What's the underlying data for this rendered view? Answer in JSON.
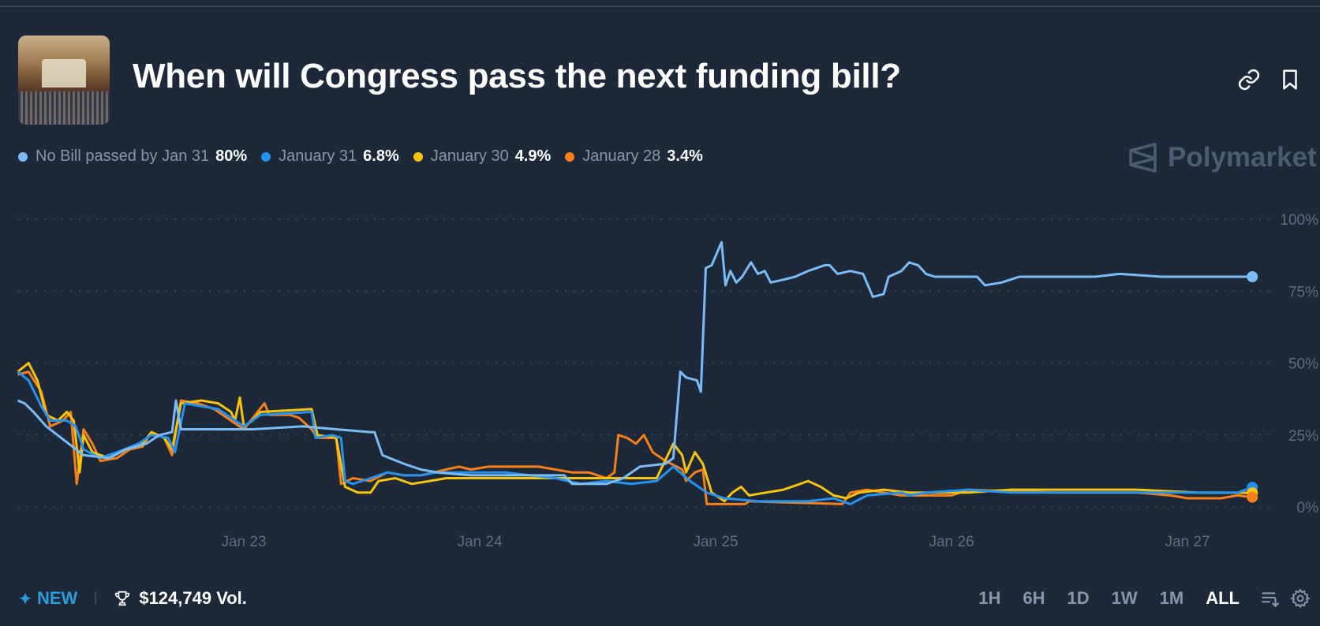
{
  "header": {
    "title": "When will Congress pass the next funding bill?",
    "thumbnail_icon": "capitol-chamber-image",
    "link_icon": "link-icon",
    "bookmark_icon": "bookmark-icon"
  },
  "brand": {
    "name": "Polymarket"
  },
  "legend": [
    {
      "label": "No Bill passed by Jan 31",
      "value": "80%",
      "color": "#7cbcf5"
    },
    {
      "label": "January 31",
      "value": "6.8%",
      "color": "#2492f0"
    },
    {
      "label": "January 30",
      "value": "4.9%",
      "color": "#f7c40d"
    },
    {
      "label": "January 28",
      "value": "3.4%",
      "color": "#f7801a"
    }
  ],
  "footer": {
    "new_label": "NEW",
    "volume": "$124,749 Vol.",
    "ranges": [
      "1H",
      "6H",
      "1D",
      "1W",
      "1M",
      "ALL"
    ],
    "active_range": "ALL"
  },
  "chart_data": {
    "type": "line",
    "ylim": [
      0,
      100
    ],
    "yticks": [
      "100%",
      "75%",
      "50%",
      "25%",
      "0%"
    ],
    "ytick_values": [
      100,
      75,
      50,
      25,
      0
    ],
    "xticks": [
      "Jan 23",
      "Jan 24",
      "Jan 25",
      "Jan 26",
      "Jan 27"
    ],
    "grid": true,
    "series": [
      {
        "name": "No Bill passed by Jan 31",
        "color": "#7cbcf5",
        "points": [
          [
            "Jan 22 01:00",
            37
          ],
          [
            "Jan 22 01:42",
            36
          ],
          [
            "Jan 22 02:36",
            33
          ],
          [
            "Jan 22 03:54",
            28
          ],
          [
            "Jan 22 07:42",
            18
          ],
          [
            "Jan 22 10:18",
            17
          ],
          [
            "Jan 22 12:00",
            20
          ],
          [
            "Jan 22 14:06",
            22
          ],
          [
            "Jan 22 15:24",
            25
          ],
          [
            "Jan 22 16:42",
            26
          ],
          [
            "Jan 22 17:06",
            37
          ],
          [
            "Jan 22 17:36",
            27
          ],
          [
            "Jan 23 00:54",
            27
          ],
          [
            "Jan 23 06:00",
            28
          ],
          [
            "Jan 23 09:24",
            27
          ],
          [
            "Jan 23 12:54",
            26
          ],
          [
            "Jan 23 13:18",
            26
          ],
          [
            "Jan 23 14:06",
            18
          ],
          [
            "Jan 23 16:18",
            15
          ],
          [
            "Jan 23 18:00",
            13
          ],
          [
            "Jan 23 19:42",
            12
          ],
          [
            "Jan 23 23:06",
            11
          ],
          [
            "Jan 24 08:36",
            11
          ],
          [
            "Jan 24 09:24",
            8
          ],
          [
            "Jan 24 12:54",
            8
          ],
          [
            "Jan 24 14:36",
            10
          ],
          [
            "Jan 24 16:18",
            14
          ],
          [
            "Jan 24 18:54",
            15
          ],
          [
            "Jan 24 19:42",
            17
          ],
          [
            "Jan 24 20:24",
            47
          ],
          [
            "Jan 24 21:00",
            45
          ],
          [
            "Jan 24 22:06",
            44
          ],
          [
            "Jan 24 22:30",
            40
          ],
          [
            "Jan 24 23:00",
            83
          ],
          [
            "Jan 24 23:36",
            84
          ],
          [
            "Jan 25 00:36",
            92
          ],
          [
            "Jan 25 01:00",
            77
          ],
          [
            "Jan 25 01:30",
            82
          ],
          [
            "Jan 25 02:06",
            78
          ],
          [
            "Jan 25 02:42",
            80
          ],
          [
            "Jan 25 03:36",
            85
          ],
          [
            "Jan 25 04:18",
            81
          ],
          [
            "Jan 25 05:00",
            82
          ],
          [
            "Jan 25 05:36",
            78
          ],
          [
            "Jan 25 06:54",
            79
          ],
          [
            "Jan 25 08:06",
            80
          ],
          [
            "Jan 25 09:24",
            82
          ],
          [
            "Jan 25 11:06",
            84
          ],
          [
            "Jan 25 11:36",
            84
          ],
          [
            "Jan 25 12:24",
            81
          ],
          [
            "Jan 25 13:42",
            82
          ],
          [
            "Jan 25 15:00",
            81
          ],
          [
            "Jan 25 16:00",
            73
          ],
          [
            "Jan 25 17:06",
            74
          ],
          [
            "Jan 25 17:36",
            80
          ],
          [
            "Jan 25 18:54",
            82
          ],
          [
            "Jan 25 19:42",
            85
          ],
          [
            "Jan 25 20:36",
            84
          ],
          [
            "Jan 25 21:24",
            81
          ],
          [
            "Jan 25 22:18",
            80
          ],
          [
            "Jan 26 02:36",
            80
          ],
          [
            "Jan 26 03:24",
            77
          ],
          [
            "Jan 26 05:06",
            78
          ],
          [
            "Jan 26 06:54",
            80
          ],
          [
            "Jan 26 14:36",
            80
          ],
          [
            "Jan 26 17:06",
            81
          ],
          [
            "Jan 26 21:24",
            80
          ],
          [
            "Jan 27 06:36",
            80
          ]
        ]
      },
      {
        "name": "January 31",
        "color": "#2492f0",
        "points": [
          [
            "Jan 22 01:00",
            47
          ],
          [
            "Jan 22 02:06",
            44
          ],
          [
            "Jan 22 03:24",
            35
          ],
          [
            "Jan 22 04:18",
            30
          ],
          [
            "Jan 22 06:00",
            30
          ],
          [
            "Jan 22 06:54",
            28
          ],
          [
            "Jan 22 07:42",
            20
          ],
          [
            "Jan 22 09:24",
            17
          ],
          [
            "Jan 22 11:06",
            19
          ],
          [
            "Jan 22 13:18",
            22
          ],
          [
            "Jan 22 14:36",
            25
          ],
          [
            "Jan 22 16:18",
            24
          ],
          [
            "Jan 22 17:00",
            19
          ],
          [
            "Jan 22 18:00",
            36
          ],
          [
            "Jan 22 19:42",
            35
          ],
          [
            "Jan 22 21:24",
            34
          ],
          [
            "Jan 23 00:00",
            28
          ],
          [
            "Jan 23 01:42",
            32
          ],
          [
            "Jan 23 06:54",
            33
          ],
          [
            "Jan 23 07:18",
            24
          ],
          [
            "Jan 23 09:00",
            25
          ],
          [
            "Jan 23 09:54",
            24
          ],
          [
            "Jan 23 10:18",
            9
          ],
          [
            "Jan 23 11:06",
            8
          ],
          [
            "Jan 23 12:54",
            10
          ],
          [
            "Jan 23 14:36",
            12
          ],
          [
            "Jan 23 16:18",
            11
          ],
          [
            "Jan 23 18:00",
            11
          ],
          [
            "Jan 23 19:42",
            12
          ],
          [
            "Jan 24 02:36",
            12
          ],
          [
            "Jan 24 07:42",
            10
          ],
          [
            "Jan 24 10:18",
            8
          ],
          [
            "Jan 24 12:54",
            9
          ],
          [
            "Jan 24 15:24",
            8
          ],
          [
            "Jan 24 18:00",
            9
          ],
          [
            "Jan 24 19:42",
            14
          ],
          [
            "Jan 24 21:24",
            9
          ],
          [
            "Jan 24 23:06",
            5
          ],
          [
            "Jan 25 00:54",
            3
          ],
          [
            "Jan 25 04:18",
            2
          ],
          [
            "Jan 25 09:24",
            2
          ],
          [
            "Jan 25 12:00",
            3
          ],
          [
            "Jan 25 13:42",
            1
          ],
          [
            "Jan 25 15:24",
            4
          ],
          [
            "Jan 25 18:54",
            5
          ],
          [
            "Jan 25 19:42",
            4
          ],
          [
            "Jan 25 21:24",
            5
          ],
          [
            "Jan 26 01:42",
            6
          ],
          [
            "Jan 26 06:00",
            5
          ],
          [
            "Jan 27 05:06",
            5
          ],
          [
            "Jan 27 06:36",
            6.8
          ]
        ]
      },
      {
        "name": "January 30",
        "color": "#f7c40d",
        "points": [
          [
            "Jan 22 01:00",
            47
          ],
          [
            "Jan 22 02:06",
            50
          ],
          [
            "Jan 22 03:00",
            44
          ],
          [
            "Jan 22 03:54",
            32
          ],
          [
            "Jan 22 05:06",
            30
          ],
          [
            "Jan 22 06:00",
            33
          ],
          [
            "Jan 22 06:42",
            30
          ],
          [
            "Jan 22 07:18",
            12
          ],
          [
            "Jan 22 07:42",
            25
          ],
          [
            "Jan 22 08:36",
            19
          ],
          [
            "Jan 22 10:18",
            17
          ],
          [
            "Jan 22 12:00",
            20
          ],
          [
            "Jan 22 13:42",
            22
          ],
          [
            "Jan 22 14:36",
            26
          ],
          [
            "Jan 22 15:54",
            24
          ],
          [
            "Jan 22 16:42",
            20
          ],
          [
            "Jan 22 17:36",
            36
          ],
          [
            "Jan 22 19:42",
            37
          ],
          [
            "Jan 22 21:24",
            36
          ],
          [
            "Jan 22 22:42",
            33
          ],
          [
            "Jan 22 23:06",
            30
          ],
          [
            "Jan 22 23:36",
            38
          ],
          [
            "Jan 23 00:00",
            28
          ],
          [
            "Jan 23 00:54",
            30
          ],
          [
            "Jan 23 01:42",
            33
          ],
          [
            "Jan 23 06:54",
            34
          ],
          [
            "Jan 23 07:30",
            25
          ],
          [
            "Jan 23 09:24",
            24
          ],
          [
            "Jan 23 10:18",
            7
          ],
          [
            "Jan 23 11:36",
            5
          ],
          [
            "Jan 23 12:54",
            5
          ],
          [
            "Jan 23 13:42",
            9
          ],
          [
            "Jan 23 15:24",
            10
          ],
          [
            "Jan 23 17:06",
            8
          ],
          [
            "Jan 23 18:54",
            9
          ],
          [
            "Jan 23 20:36",
            10
          ],
          [
            "Jan 24 18:00",
            10
          ],
          [
            "Jan 24 19:42",
            22
          ],
          [
            "Jan 24 20:36",
            18
          ],
          [
            "Jan 24 21:00",
            12
          ],
          [
            "Jan 24 21:54",
            19
          ],
          [
            "Jan 24 22:42",
            15
          ],
          [
            "Jan 24 23:36",
            5
          ],
          [
            "Jan 25 00:54",
            2
          ],
          [
            "Jan 25 01:42",
            5
          ],
          [
            "Jan 25 02:36",
            7
          ],
          [
            "Jan 25 03:24",
            4
          ],
          [
            "Jan 25 05:06",
            5
          ],
          [
            "Jan 25 06:54",
            6
          ],
          [
            "Jan 25 08:36",
            8
          ],
          [
            "Jan 25 09:24",
            9
          ],
          [
            "Jan 25 10:42",
            7
          ],
          [
            "Jan 25 12:00",
            4
          ],
          [
            "Jan 25 13:18",
            3
          ],
          [
            "Jan 25 14:36",
            5
          ],
          [
            "Jan 25 17:06",
            6
          ],
          [
            "Jan 25 19:42",
            5
          ],
          [
            "Jan 26 01:42",
            5
          ],
          [
            "Jan 26 06:00",
            6
          ],
          [
            "Jan 26 18:54",
            6
          ],
          [
            "Jan 27 00:54",
            5
          ],
          [
            "Jan 27 06:36",
            4.9
          ]
        ]
      },
      {
        "name": "January 28",
        "color": "#f7801a",
        "points": [
          [
            "Jan 22 01:00",
            46
          ],
          [
            "Jan 22 02:06",
            47
          ],
          [
            "Jan 22 03:24",
            40
          ],
          [
            "Jan 22 04:18",
            28
          ],
          [
            "Jan 22 05:36",
            30
          ],
          [
            "Jan 22 06:24",
            33
          ],
          [
            "Jan 22 07:00",
            8
          ],
          [
            "Jan 22 07:42",
            27
          ],
          [
            "Jan 22 08:36",
            22
          ],
          [
            "Jan 22 09:24",
            16
          ],
          [
            "Jan 22 11:06",
            17
          ],
          [
            "Jan 22 12:24",
            20
          ],
          [
            "Jan 22 13:42",
            21
          ],
          [
            "Jan 22 14:36",
            26
          ],
          [
            "Jan 22 15:54",
            24
          ],
          [
            "Jan 22 16:42",
            18
          ],
          [
            "Jan 22 17:36",
            37
          ],
          [
            "Jan 22 19:18",
            36
          ],
          [
            "Jan 22 21:00",
            34
          ],
          [
            "Jan 22 22:42",
            30
          ],
          [
            "Jan 23 00:00",
            27
          ],
          [
            "Jan 23 02:06",
            36
          ],
          [
            "Jan 23 02:36",
            32
          ],
          [
            "Jan 23 04:42",
            32
          ],
          [
            "Jan 23 05:36",
            31
          ],
          [
            "Jan 23 06:54",
            27
          ],
          [
            "Jan 23 07:30",
            24
          ],
          [
            "Jan 23 09:24",
            24
          ],
          [
            "Jan 23 09:54",
            8
          ],
          [
            "Jan 23 11:06",
            10
          ],
          [
            "Jan 23 12:54",
            9
          ],
          [
            "Jan 23 14:36",
            12
          ],
          [
            "Jan 23 16:18",
            11
          ],
          [
            "Jan 23 18:00",
            11
          ],
          [
            "Jan 23 20:36",
            13
          ],
          [
            "Jan 23 21:54",
            14
          ],
          [
            "Jan 23 23:06",
            13
          ],
          [
            "Jan 24 00:54",
            14
          ],
          [
            "Jan 24 06:00",
            14
          ],
          [
            "Jan 24 09:24",
            12
          ],
          [
            "Jan 24 11:06",
            12
          ],
          [
            "Jan 24 12:54",
            10
          ],
          [
            "Jan 24 13:42",
            12
          ],
          [
            "Jan 24 14:06",
            25
          ],
          [
            "Jan 24 15:00",
            24
          ],
          [
            "Jan 24 15:54",
            22
          ],
          [
            "Jan 24 16:42",
            25
          ],
          [
            "Jan 24 17:36",
            19
          ],
          [
            "Jan 24 18:54",
            16
          ],
          [
            "Jan 24 20:36",
            13
          ],
          [
            "Jan 24 21:00",
            9
          ],
          [
            "Jan 24 21:54",
            12
          ],
          [
            "Jan 24 22:42",
            13
          ],
          [
            "Jan 24 23:06",
            1
          ],
          [
            "Jan 25 03:00",
            1
          ],
          [
            "Jan 25 03:24",
            2
          ],
          [
            "Jan 25 12:54",
            1
          ],
          [
            "Jan 25 13:42",
            5
          ],
          [
            "Jan 25 15:24",
            6
          ],
          [
            "Jan 25 17:06",
            5
          ],
          [
            "Jan 25 18:54",
            4
          ],
          [
            "Jan 26 00:00",
            4
          ],
          [
            "Jan 26 01:42",
            6
          ],
          [
            "Jan 26 10:18",
            5
          ],
          [
            "Jan 26 18:54",
            5
          ],
          [
            "Jan 26 22:18",
            4
          ],
          [
            "Jan 27 00:00",
            3
          ],
          [
            "Jan 27 03:24",
            3
          ],
          [
            "Jan 27 05:06",
            4
          ],
          [
            "Jan 27 06:36",
            3.4
          ]
        ]
      }
    ]
  }
}
